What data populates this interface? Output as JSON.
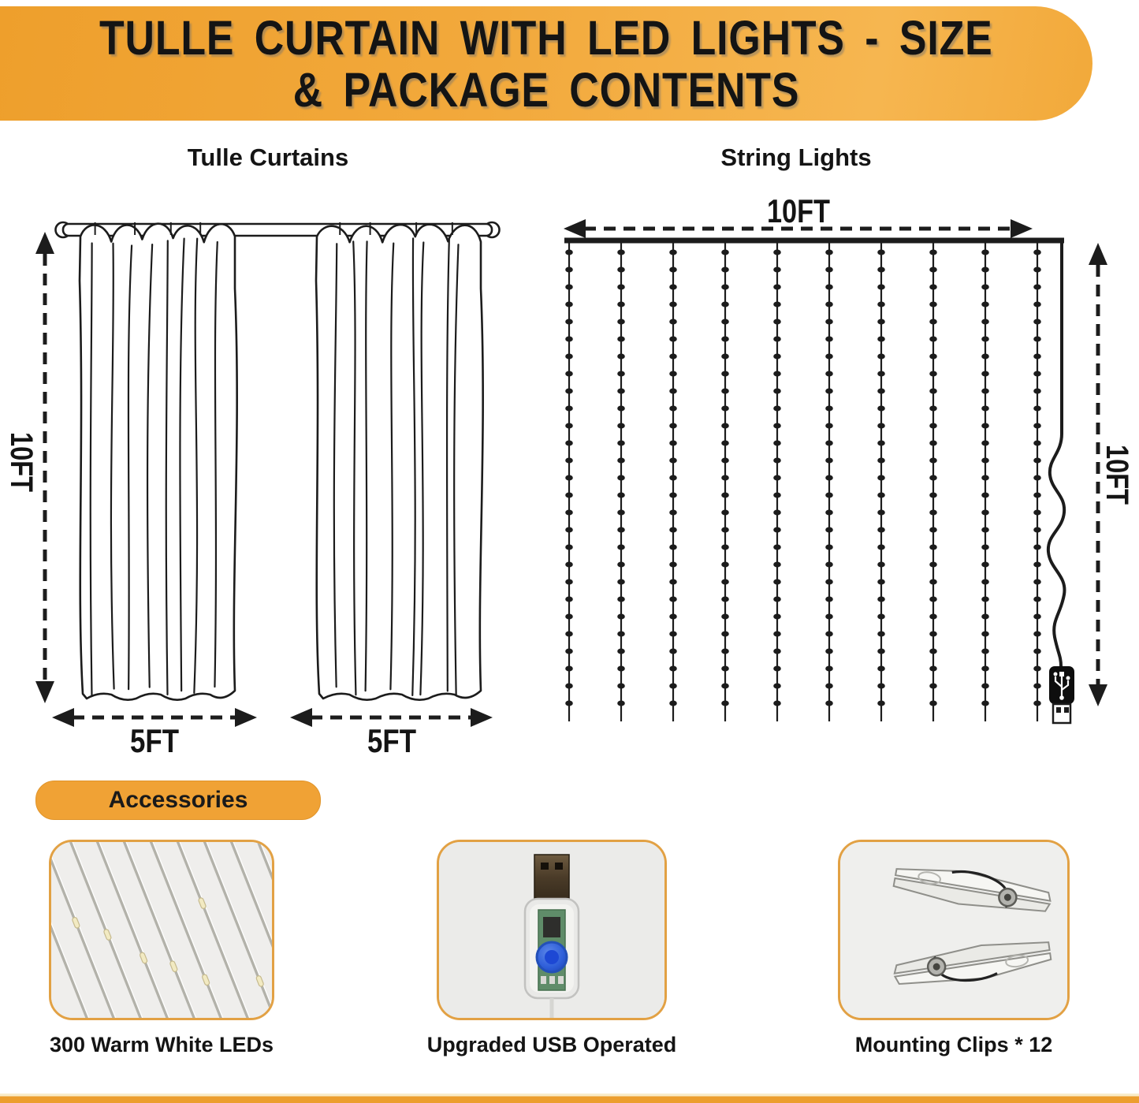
{
  "banner": {
    "line1": "TULLE  CURTAIN  WITH  LED  LIGHTS - SIZE",
    "line2": "& PACKAGE CONTENTS"
  },
  "sections": {
    "curtains_title": "Tulle Curtains",
    "lights_title": "String Lights"
  },
  "dimensions": {
    "curtain_height": "10FT",
    "panel_width_left": "5FT",
    "panel_width_right": "5FT",
    "lights_width": "10FT",
    "lights_height": "10FT"
  },
  "accessories": {
    "title": "Accessories",
    "items": [
      {
        "caption": "300 Warm White LEDs"
      },
      {
        "caption": "Upgraded USB Operated"
      },
      {
        "caption": "Mounting Clips * 12"
      }
    ]
  },
  "icons": [
    "usb-plug-icon",
    "usb-trident-icon",
    "arrow-icons"
  ],
  "colors": {
    "accent_orange": "#F0A235",
    "card_border": "#E2A144",
    "line_black": "#1C1C1C",
    "button_blue": "#2F5FD9",
    "led_warm_white": "#F2EAC2"
  }
}
